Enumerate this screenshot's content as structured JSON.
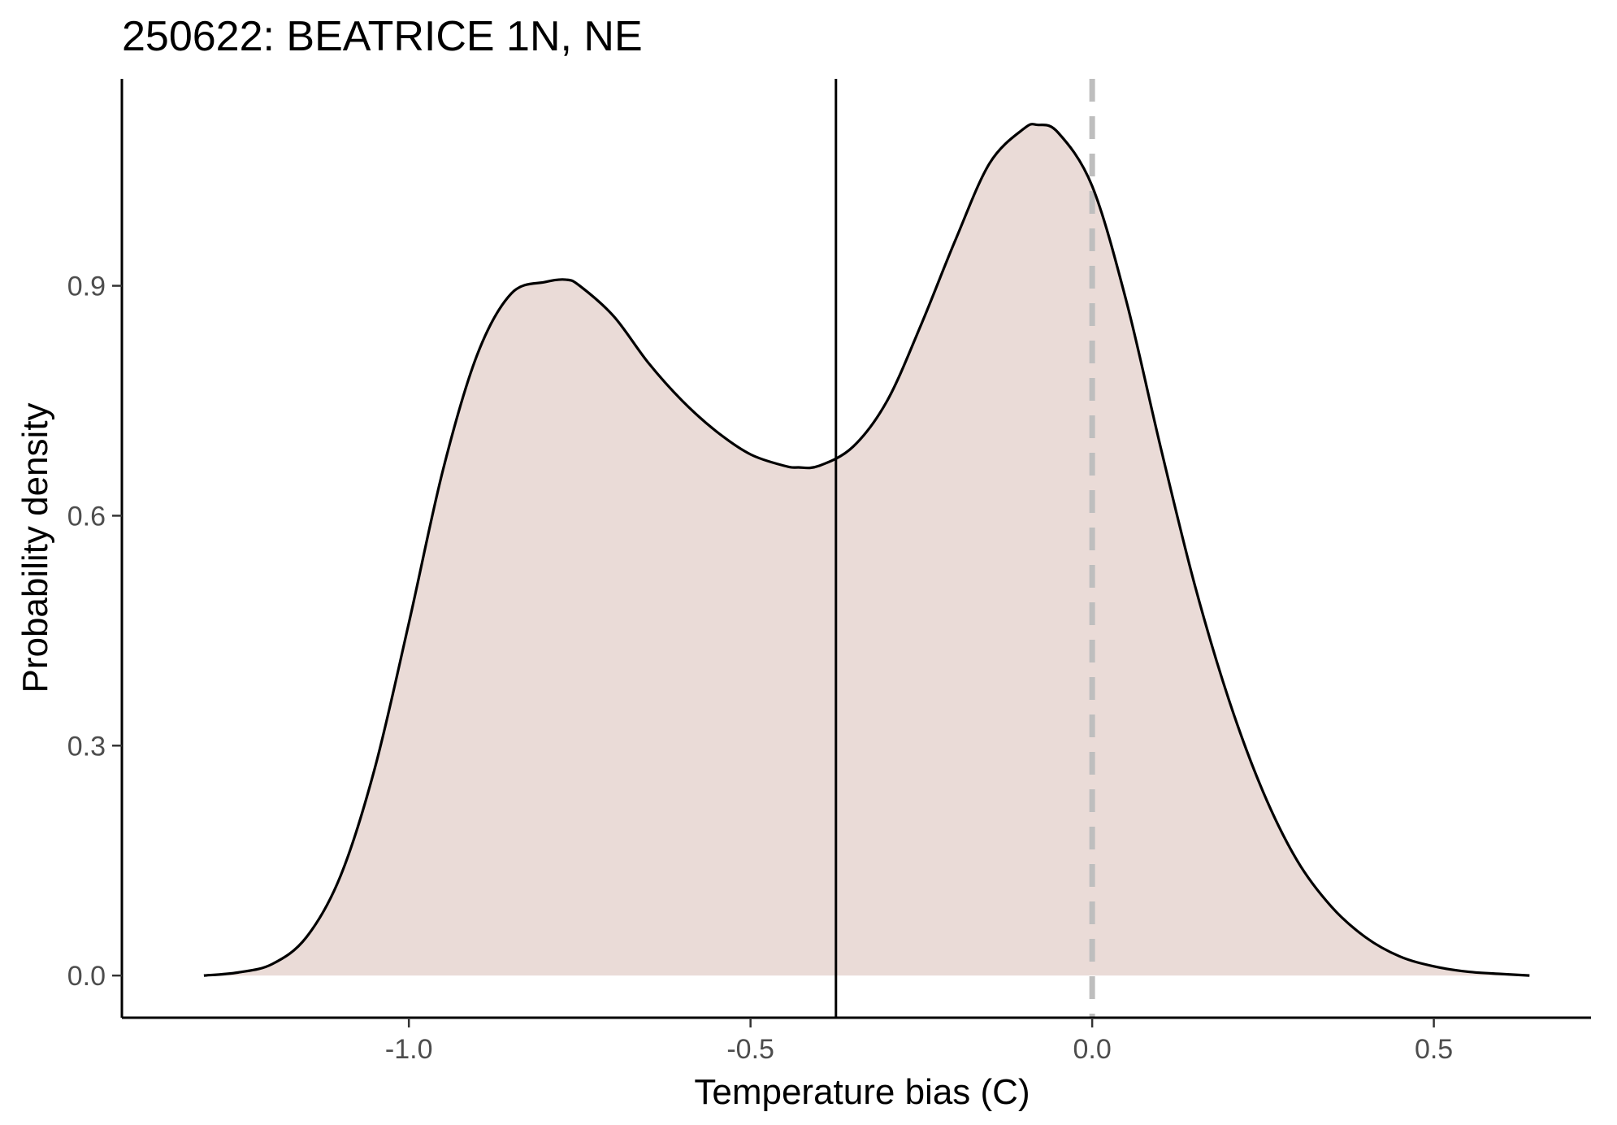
{
  "chart_data": {
    "type": "area",
    "title": "250622: BEATRICE 1N, NE",
    "xlabel": "Temperature bias (C)",
    "ylabel": "Probability density",
    "xlim": [
      -1.42,
      0.73
    ],
    "ylim": [
      -0.055,
      1.17
    ],
    "x_ticks": [
      -1.0,
      -0.5,
      0.0,
      0.5
    ],
    "x_tick_labels": [
      "-1.0",
      "-0.5",
      "0.0",
      "0.5"
    ],
    "y_ticks": [
      0.0,
      0.3,
      0.6,
      0.9
    ],
    "y_tick_labels": [
      "0.0",
      "0.3",
      "0.6",
      "0.9"
    ],
    "grid": false,
    "legend": "none",
    "fill_color": "#eadbd7",
    "line_color": "#000000",
    "reference_lines": [
      {
        "x": -0.375,
        "style": "solid",
        "color": "#000000"
      },
      {
        "x": 0.0,
        "style": "dashed",
        "color": "#bebebe"
      }
    ],
    "series": [
      {
        "x": [
          -1.3,
          -1.25,
          -1.2,
          -1.15,
          -1.1,
          -1.05,
          -1.0,
          -0.95,
          -0.9,
          -0.85,
          -0.8,
          -0.77,
          -0.75,
          -0.7,
          -0.65,
          -0.6,
          -0.55,
          -0.5,
          -0.45,
          -0.43,
          -0.4,
          -0.35,
          -0.3,
          -0.25,
          -0.2,
          -0.15,
          -0.1,
          -0.08,
          -0.05,
          0.0,
          0.05,
          0.1,
          0.15,
          0.2,
          0.25,
          0.3,
          0.35,
          0.4,
          0.45,
          0.5,
          0.55,
          0.6,
          0.64
        ],
        "y": [
          0.0,
          0.004,
          0.015,
          0.05,
          0.13,
          0.27,
          0.46,
          0.66,
          0.81,
          0.89,
          0.905,
          0.908,
          0.9,
          0.86,
          0.8,
          0.75,
          0.71,
          0.68,
          0.665,
          0.663,
          0.665,
          0.69,
          0.75,
          0.85,
          0.96,
          1.06,
          1.105,
          1.11,
          1.1,
          1.03,
          0.88,
          0.69,
          0.51,
          0.36,
          0.24,
          0.15,
          0.09,
          0.05,
          0.025,
          0.012,
          0.005,
          0.002,
          0.0
        ]
      }
    ]
  }
}
